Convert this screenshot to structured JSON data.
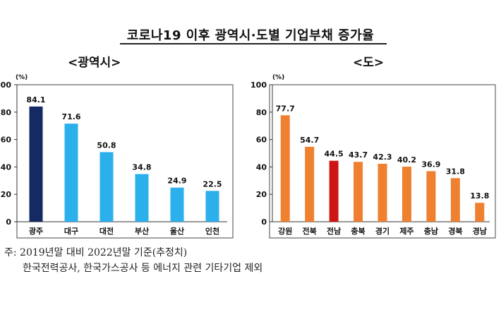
{
  "title": "코로나19 이후 광역시·도별 기업부채 증가율",
  "chart_data": [
    {
      "type": "bar",
      "subtitle": "<광역시>",
      "unit": "(%)",
      "ylim": [
        0,
        100
      ],
      "yticks": [
        0,
        20,
        40,
        60,
        80,
        100
      ],
      "grid": false,
      "categories": [
        "광주",
        "대구",
        "대전",
        "부산",
        "울산",
        "인천"
      ],
      "values": [
        84.1,
        71.6,
        50.8,
        34.8,
        24.9,
        22.5
      ],
      "colors": [
        "#152a63",
        "#2bb0ec",
        "#2bb0ec",
        "#2bb0ec",
        "#2bb0ec",
        "#2bb0ec"
      ]
    },
    {
      "type": "bar",
      "subtitle": "<도>",
      "unit": "(%)",
      "ylim": [
        0,
        100
      ],
      "yticks": [
        0,
        20,
        40,
        60,
        80,
        100
      ],
      "grid": false,
      "categories": [
        "강원",
        "전북",
        "전남",
        "충북",
        "경기",
        "제주",
        "충남",
        "경북",
        "경남"
      ],
      "values": [
        77.7,
        54.7,
        44.5,
        43.7,
        42.3,
        40.2,
        36.9,
        31.8,
        13.8
      ],
      "colors": [
        "#ee8030",
        "#ee8030",
        "#cf1414",
        "#ee8030",
        "#ee8030",
        "#ee8030",
        "#ee8030",
        "#ee8030",
        "#ee8030"
      ]
    }
  ],
  "notes": {
    "line1": "주: 2019년말 대비 2022년말 기준(추정치)",
    "line2": "한국전력공사, 한국가스공사 등 에너지 관련 기타기업 제외"
  }
}
